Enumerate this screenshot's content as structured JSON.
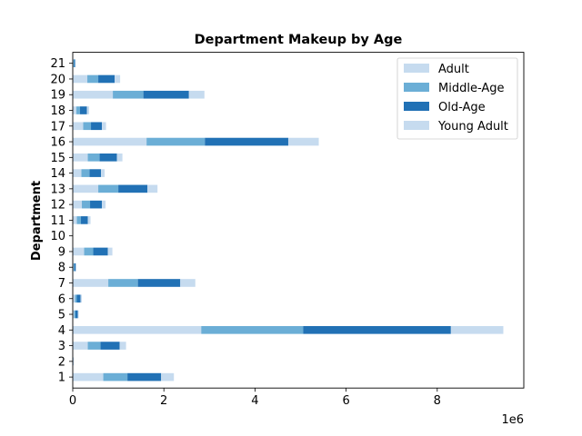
{
  "chart_data": {
    "type": "bar",
    "orientation": "horizontal",
    "stacked": true,
    "title": "Department Makeup by Age",
    "ylabel": "Department",
    "xlabel": "",
    "x_offset_label": "1e6",
    "xlim": [
      0,
      9.9
    ],
    "x_ticks": [
      "0",
      "2",
      "4",
      "6",
      "8"
    ],
    "x_tick_values": [
      0,
      2,
      4,
      6,
      8
    ],
    "grid": false,
    "legend_position": "top-right",
    "categories": [
      "1",
      "2",
      "3",
      "4",
      "5",
      "6",
      "7",
      "8",
      "9",
      "10",
      "11",
      "12",
      "13",
      "14",
      "15",
      "16",
      "17",
      "18",
      "19",
      "20",
      "21"
    ],
    "series": [
      {
        "name": "Adult",
        "color": "#c6dbef",
        "values": [
          0.67,
          0.005,
          0.33,
          2.82,
          0.03,
          0.05,
          0.78,
          0.015,
          0.25,
          0.0,
          0.09,
          0.2,
          0.56,
          0.19,
          0.33,
          1.62,
          0.23,
          0.08,
          0.88,
          0.32,
          0.015
        ]
      },
      {
        "name": "Middle-Age",
        "color": "#6baed6",
        "values": [
          0.53,
          0.005,
          0.28,
          2.24,
          0.03,
          0.04,
          0.65,
          0.02,
          0.2,
          0.0,
          0.09,
          0.18,
          0.44,
          0.18,
          0.26,
          1.28,
          0.17,
          0.08,
          0.67,
          0.24,
          0.015
        ]
      },
      {
        "name": "Old-Age",
        "color": "#2171b5",
        "values": [
          0.74,
          0.005,
          0.42,
          3.24,
          0.05,
          0.08,
          0.93,
          0.03,
          0.32,
          0.0,
          0.15,
          0.26,
          0.64,
          0.25,
          0.38,
          1.83,
          0.24,
          0.15,
          1.0,
          0.36,
          0.02
        ]
      },
      {
        "name": "Young Adult",
        "color": "#c6dbef",
        "values": [
          0.28,
          0.005,
          0.14,
          1.15,
          0.02,
          0.03,
          0.33,
          0.015,
          0.1,
          0.0,
          0.06,
          0.08,
          0.22,
          0.08,
          0.12,
          0.67,
          0.09,
          0.05,
          0.34,
          0.12,
          0.01
        ]
      }
    ]
  }
}
